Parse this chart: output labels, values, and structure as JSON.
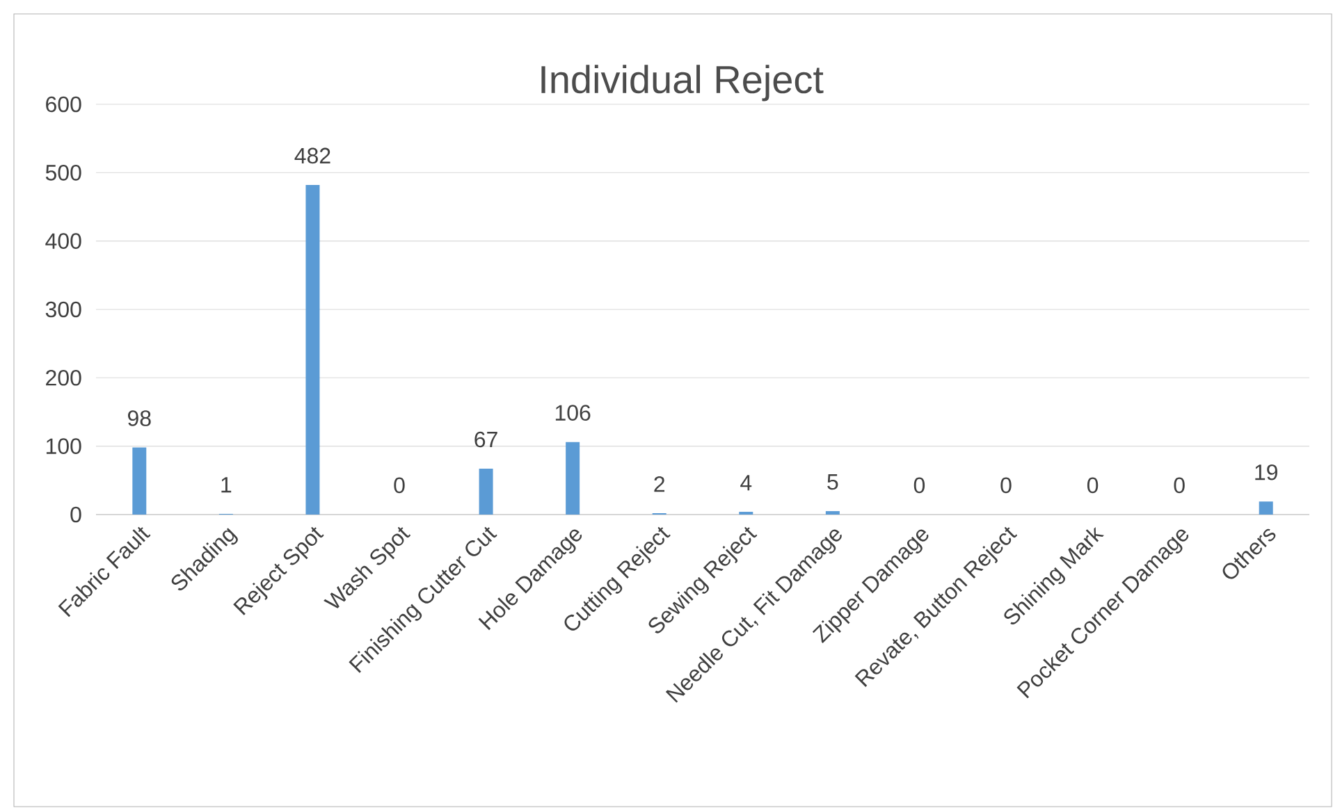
{
  "chart_data": {
    "type": "bar",
    "title": "Individual Reject",
    "categories": [
      "Fabric Fault",
      "Shading",
      "Reject Spot",
      "Wash Spot",
      "Finishing Cutter Cut",
      "Hole Damage",
      "Cutting Reject",
      "Sewing Reject",
      "Needle Cut, Fit Damage",
      "Zipper Damage",
      "Revate, Button Reject",
      "Shining Mark",
      "Pocket Corner Damage",
      "Others"
    ],
    "values": [
      98,
      1,
      482,
      0,
      67,
      106,
      2,
      4,
      5,
      0,
      0,
      0,
      0,
      19
    ],
    "color": "#5b9bd5",
    "ylim": [
      0,
      600
    ],
    "yticks": [
      0,
      100,
      200,
      300,
      400,
      500,
      600
    ],
    "grid": "y",
    "data_labels": true
  }
}
